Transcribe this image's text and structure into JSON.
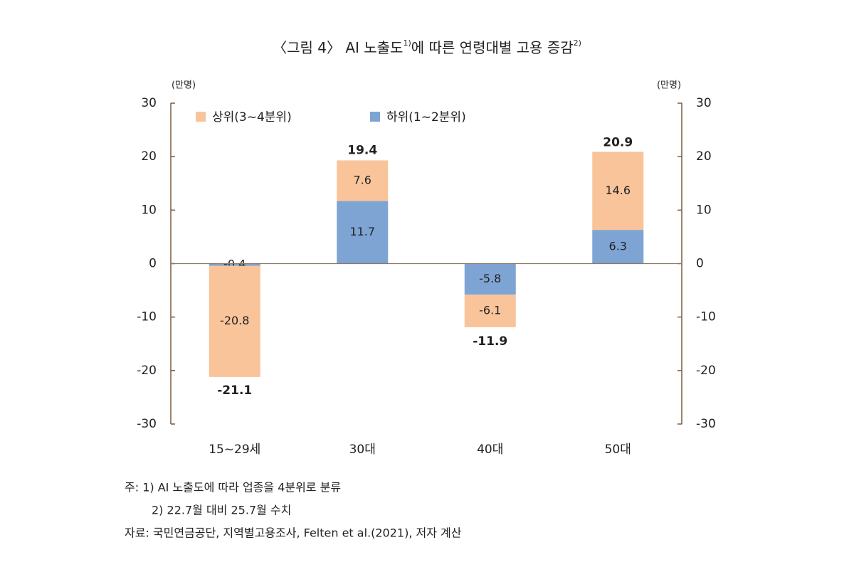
{
  "chart_data": {
    "type": "stacked_bar",
    "title": [
      "〈그림 4〉 AI 노출도",
      "1)",
      "에 따른 연령대별 고용 증감",
      "2)"
    ],
    "y_unit": "(만명)",
    "y2_unit": "(만명)",
    "categories": [
      "15~29세",
      "30대",
      "40대",
      "50대"
    ],
    "series": [
      {
        "name": "상위(3~4분위)",
        "color": "#f9c49a",
        "values": [
          -20.8,
          7.6,
          -6.1,
          14.6
        ]
      },
      {
        "name": "하위(1~2분위)",
        "color": "#7ea4d4",
        "values": [
          -0.4,
          11.7,
          -5.8,
          6.3
        ]
      }
    ],
    "totals": [
      -21.1,
      19.4,
      -11.9,
      20.9
    ],
    "ylim": [
      -30,
      30
    ],
    "yticks": [
      -30,
      -20,
      -10,
      0,
      10,
      20,
      30
    ],
    "y2lim": [
      -30,
      30
    ],
    "y2ticks": [
      -30,
      -20,
      -10,
      0,
      10,
      20,
      30
    ],
    "notes": [
      "주: 1) AI 노출도에 따라 업종을 4분위로 분류",
      "2) 22.7월 대비 25.7월 수치",
      "자료: 국민연금공단, 지역별고용조사, Felten et al.(2021), 저자 계산"
    ]
  }
}
